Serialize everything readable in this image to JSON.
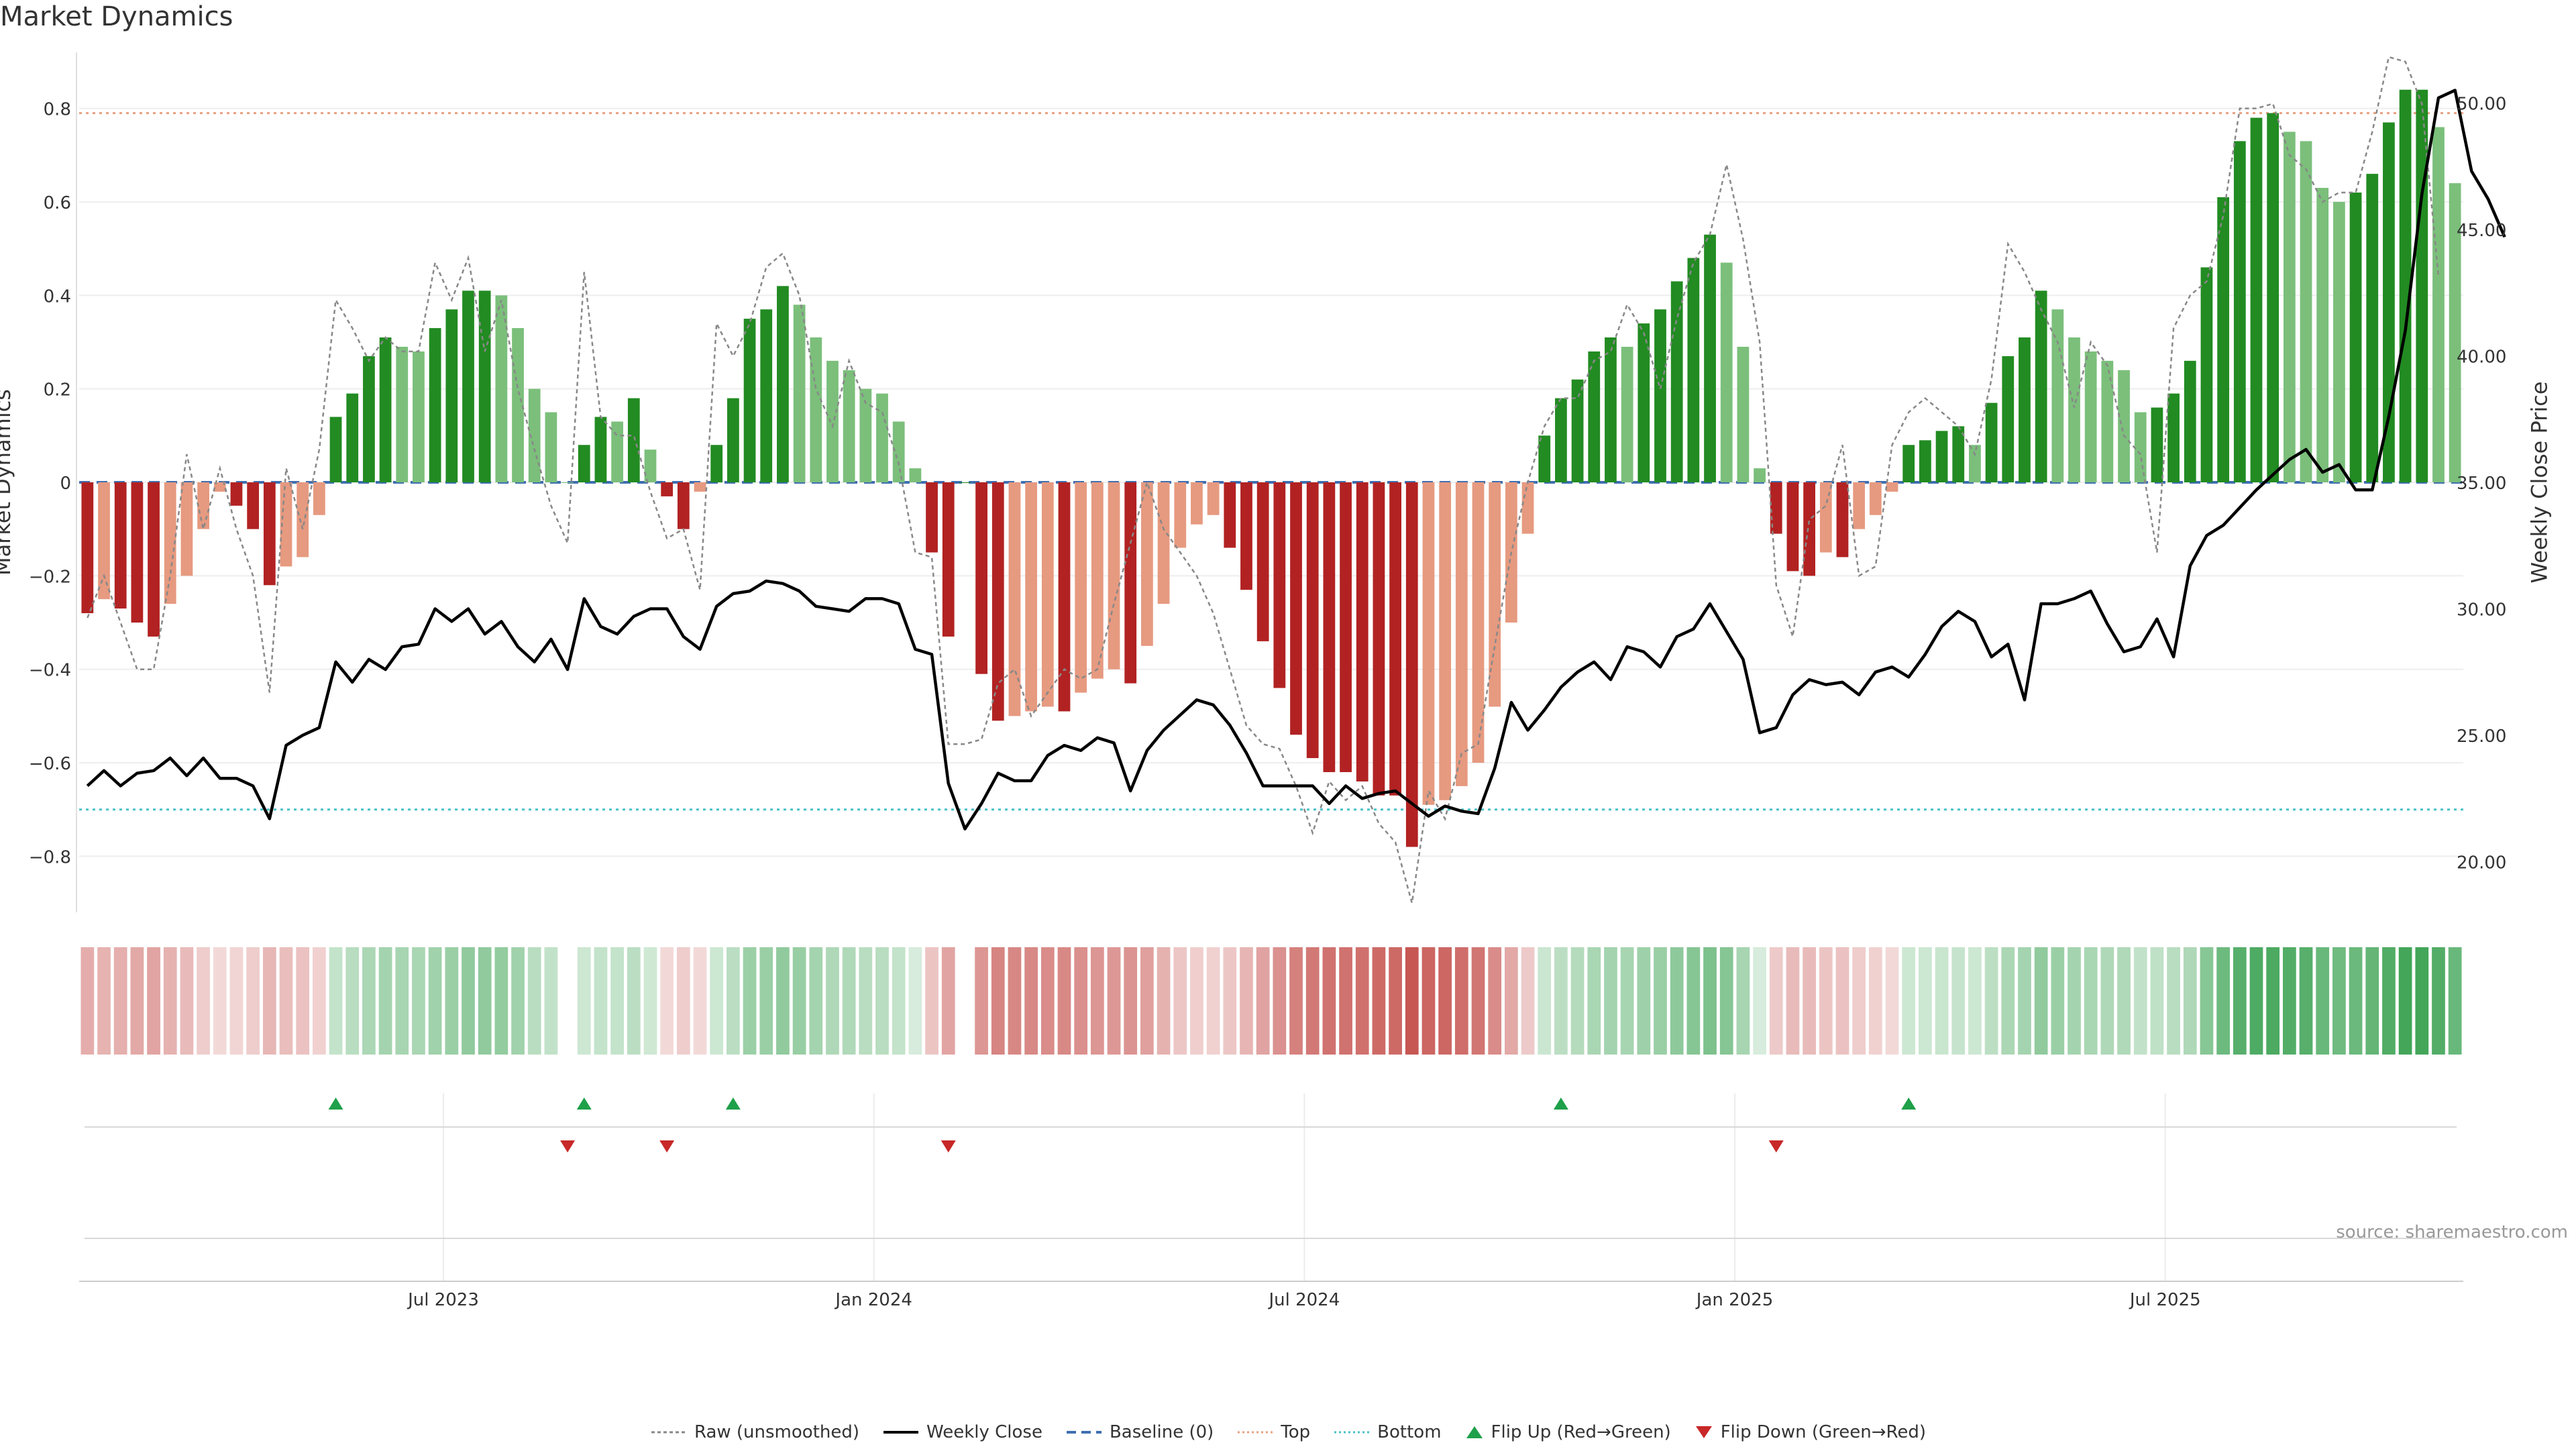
{
  "title": "Market Dynamics",
  "source_note": "source: sharemaestro.com",
  "axes": {
    "left_label": "Market Dynamics",
    "right_label": "Weekly Close Price",
    "left_ticks": [
      "0.8",
      "0.6",
      "0.4",
      "0.2",
      "0",
      "−0.2",
      "−0.4",
      "−0.6",
      "−0.8"
    ],
    "right_ticks": [
      "50.00",
      "45.00",
      "40.00",
      "35.00",
      "30.00",
      "25.00",
      "20.00"
    ],
    "x_ticks": [
      "Jul 2023",
      "Jan 2024",
      "Jul 2024",
      "Jan 2025",
      "Jul 2025"
    ]
  },
  "legend": [
    {
      "label": "Raw (unsmoothed)",
      "style": "raw"
    },
    {
      "label": "Weekly Close",
      "style": "close"
    },
    {
      "label": "Baseline (0)",
      "style": "baseline"
    },
    {
      "label": "Top",
      "style": "top"
    },
    {
      "label": "Bottom",
      "style": "bottom"
    },
    {
      "label": "Flip Up (Red→Green)",
      "style": "flipup"
    },
    {
      "label": "Flip Down (Green→Red)",
      "style": "flipdown"
    }
  ],
  "colors": {
    "strong_green": "#228B22",
    "light_green": "#7BBF7B",
    "strong_red": "#B22222",
    "light_red": "#E69A80",
    "close_line": "#000000",
    "raw_line": "#888888",
    "baseline": "#3f6fb0",
    "top": "#e8a07e",
    "bottom": "#48c0c8",
    "flip_up": "#1fa04a",
    "flip_down": "#c82828"
  },
  "chart_data": {
    "type": "bar",
    "x_start": "2023-02-13",
    "x_step_days": 7,
    "ylim": [
      -0.92,
      0.92
    ],
    "y2lim": [
      18.0,
      52.0
    ],
    "top_level": 0.79,
    "bottom_level": -0.7,
    "baseline": 0,
    "series": [
      {
        "name": "Market Dynamics",
        "kind": "bar",
        "values": [
          -0.28,
          -0.25,
          -0.27,
          -0.3,
          -0.33,
          -0.26,
          -0.2,
          -0.1,
          -0.02,
          -0.05,
          -0.1,
          -0.22,
          -0.18,
          -0.16,
          -0.07,
          0.14,
          0.19,
          0.27,
          0.31,
          0.29,
          0.28,
          0.33,
          0.37,
          0.41,
          0.41,
          0.4,
          0.33,
          0.2,
          0.15,
          0.0,
          0.08,
          0.14,
          0.13,
          0.18,
          0.07,
          -0.03,
          -0.1,
          -0.02,
          0.08,
          0.18,
          0.35,
          0.37,
          0.42,
          0.38,
          0.31,
          0.26,
          0.24,
          0.2,
          0.19,
          0.13,
          0.03,
          -0.15,
          -0.33,
          0.0,
          -0.41,
          -0.51,
          -0.5,
          -0.49,
          -0.48,
          -0.49,
          -0.45,
          -0.42,
          -0.4,
          -0.43,
          -0.35,
          -0.26,
          -0.14,
          -0.09,
          -0.07,
          -0.14,
          -0.23,
          -0.34,
          -0.44,
          -0.54,
          -0.59,
          -0.62,
          -0.62,
          -0.64,
          -0.67,
          -0.67,
          -0.78,
          -0.69,
          -0.68,
          -0.65,
          -0.6,
          -0.48,
          -0.3,
          -0.11,
          0.1,
          0.18,
          0.22,
          0.28,
          0.31,
          0.29,
          0.34,
          0.37,
          0.43,
          0.48,
          0.53,
          0.47,
          0.29,
          0.03,
          -0.11,
          -0.19,
          -0.2,
          -0.15,
          -0.16,
          -0.1,
          -0.07,
          -0.02,
          0.08,
          0.09,
          0.11,
          0.12,
          0.08,
          0.17,
          0.27,
          0.31,
          0.41,
          0.37,
          0.31,
          0.28,
          0.26,
          0.24,
          0.15,
          0.16,
          0.19,
          0.26,
          0.46,
          0.61,
          0.73,
          0.78,
          0.79,
          0.75,
          0.73,
          0.63,
          0.6,
          0.62,
          0.66,
          0.77,
          0.84,
          0.84,
          0.76,
          0.64
        ]
      },
      {
        "name": "Raw (unsmoothed)",
        "kind": "line",
        "values": [
          -0.29,
          -0.2,
          -0.3,
          -0.4,
          -0.4,
          -0.2,
          0.06,
          -0.1,
          0.03,
          -0.1,
          -0.2,
          -0.45,
          0.03,
          -0.1,
          0.07,
          0.39,
          0.33,
          0.26,
          0.31,
          0.28,
          0.28,
          0.47,
          0.39,
          0.48,
          0.28,
          0.39,
          0.2,
          0.07,
          -0.05,
          -0.13,
          0.45,
          0.14,
          0.1,
          0.1,
          -0.02,
          -0.12,
          -0.1,
          -0.23,
          0.34,
          0.27,
          0.34,
          0.46,
          0.49,
          0.4,
          0.2,
          0.12,
          0.26,
          0.17,
          0.15,
          0.04,
          -0.15,
          -0.16,
          -0.56,
          -0.56,
          -0.55,
          -0.43,
          -0.4,
          -0.5,
          -0.45,
          -0.4,
          -0.42,
          -0.4,
          -0.26,
          -0.13,
          0.0,
          -0.1,
          -0.15,
          -0.2,
          -0.28,
          -0.4,
          -0.52,
          -0.56,
          -0.57,
          -0.65,
          -0.75,
          -0.64,
          -0.68,
          -0.65,
          -0.73,
          -0.77,
          -0.9,
          -0.66,
          -0.72,
          -0.58,
          -0.56,
          -0.35,
          -0.15,
          0.0,
          0.12,
          0.18,
          0.18,
          0.26,
          0.28,
          0.38,
          0.32,
          0.2,
          0.35,
          0.47,
          0.53,
          0.68,
          0.52,
          0.3,
          -0.22,
          -0.33,
          -0.08,
          -0.05,
          0.08,
          -0.2,
          -0.18,
          0.08,
          0.15,
          0.18,
          0.15,
          0.12,
          0.06,
          0.22,
          0.51,
          0.45,
          0.37,
          0.3,
          0.16,
          0.3,
          0.25,
          0.1,
          0.06,
          -0.15,
          0.33,
          0.4,
          0.43,
          0.57,
          0.8,
          0.8,
          0.81,
          0.7,
          0.67,
          0.6,
          0.62,
          0.62,
          0.75,
          0.91,
          0.9,
          0.81,
          0.44
        ]
      },
      {
        "name": "Weekly Close",
        "kind": "line",
        "axis": "right",
        "values": [
          23.0,
          23.6,
          23.0,
          23.5,
          23.6,
          24.1,
          23.4,
          24.1,
          23.3,
          23.3,
          23.0,
          21.7,
          24.6,
          25.0,
          25.3,
          27.9,
          27.1,
          28.0,
          27.6,
          28.5,
          28.6,
          30.0,
          29.5,
          30.0,
          29.0,
          29.5,
          28.5,
          27.9,
          28.8,
          27.6,
          30.4,
          29.3,
          29.0,
          29.7,
          30.0,
          30.0,
          28.9,
          28.4,
          30.1,
          30.6,
          30.7,
          31.1,
          31.0,
          30.7,
          30.1,
          30.0,
          29.9,
          30.4,
          30.4,
          30.2,
          28.4,
          28.2,
          23.1,
          21.3,
          22.3,
          23.5,
          23.2,
          23.2,
          24.2,
          24.6,
          24.4,
          24.9,
          24.7,
          22.8,
          24.4,
          25.2,
          25.8,
          26.4,
          26.2,
          25.4,
          24.3,
          23.0,
          23.0,
          23.0,
          23.0,
          22.3,
          23.0,
          22.5,
          22.7,
          22.8,
          22.3,
          21.8,
          22.2,
          22.0,
          21.9,
          23.7,
          26.3,
          25.2,
          26.0,
          26.9,
          27.5,
          27.9,
          27.2,
          28.5,
          28.3,
          27.7,
          28.9,
          29.2,
          30.2,
          29.1,
          28.0,
          25.1,
          25.3,
          26.6,
          27.2,
          27.0,
          27.1,
          26.6,
          27.5,
          27.7,
          27.3,
          28.2,
          29.3,
          29.9,
          29.5,
          28.1,
          28.6,
          26.4,
          30.2,
          30.2,
          30.4,
          30.7,
          29.4,
          28.3,
          28.5,
          29.6,
          28.1,
          31.7,
          32.9,
          33.3,
          34.0,
          34.7,
          35.3,
          35.9,
          36.3,
          35.4,
          35.7,
          34.7,
          34.7,
          37.6,
          41.0,
          46.4,
          50.2,
          50.5,
          47.3,
          46.2,
          44.7
        ]
      }
    ],
    "heat_strip": [
      -0.28,
      -0.25,
      -0.27,
      -0.3,
      -0.33,
      -0.26,
      -0.2,
      -0.1,
      -0.02,
      -0.05,
      -0.1,
      -0.22,
      -0.18,
      -0.16,
      -0.07,
      0.14,
      0.19,
      0.27,
      0.31,
      0.29,
      0.28,
      0.33,
      0.37,
      0.41,
      0.41,
      0.4,
      0.33,
      0.2,
      0.15,
      0.0,
      0.08,
      0.14,
      0.13,
      0.18,
      0.07,
      -0.03,
      -0.1,
      -0.02,
      0.08,
      0.18,
      0.35,
      0.37,
      0.42,
      0.38,
      0.31,
      0.26,
      0.24,
      0.2,
      0.19,
      0.13,
      0.03,
      -0.15,
      -0.33,
      0.0,
      -0.41,
      -0.51,
      -0.5,
      -0.49,
      -0.48,
      -0.49,
      -0.45,
      -0.42,
      -0.4,
      -0.43,
      -0.35,
      -0.26,
      -0.14,
      -0.09,
      -0.07,
      -0.14,
      -0.23,
      -0.34,
      -0.44,
      -0.54,
      -0.59,
      -0.62,
      -0.62,
      -0.64,
      -0.67,
      -0.67,
      -0.78,
      -0.69,
      -0.68,
      -0.65,
      -0.6,
      -0.48,
      -0.3,
      -0.11,
      0.1,
      0.18,
      0.22,
      0.28,
      0.31,
      0.29,
      0.34,
      0.37,
      0.43,
      0.48,
      0.53,
      0.47,
      0.29,
      0.03,
      -0.11,
      -0.19,
      -0.2,
      -0.15,
      -0.16,
      -0.1,
      -0.07,
      -0.02,
      0.08,
      0.09,
      0.11,
      0.12,
      0.08,
      0.17,
      0.27,
      0.31,
      0.41,
      0.37,
      0.31,
      0.28,
      0.26,
      0.24,
      0.15,
      0.16,
      0.19,
      0.26,
      0.46,
      0.61,
      0.73,
      0.78,
      0.79,
      0.75,
      0.73,
      0.63,
      0.6,
      0.62,
      0.66,
      0.77,
      0.84,
      0.84,
      0.76,
      0.64
    ],
    "flip_up_weeks": [
      15,
      30,
      39,
      89,
      110
    ],
    "flip_down_weeks": [
      29,
      35,
      52,
      102
    ],
    "x_tick_weeks": [
      22,
      48,
      74,
      100,
      126
    ]
  }
}
